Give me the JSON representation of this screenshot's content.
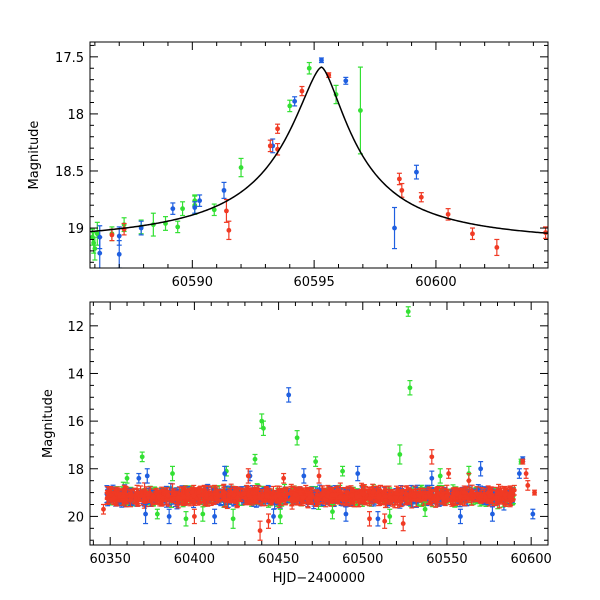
{
  "colors": {
    "green": "#33e033",
    "blue": "#1f5fe0",
    "red": "#f03a24",
    "fit": "#000000",
    "axes": "#000000"
  },
  "chart_data": [
    {
      "type": "scatter",
      "title": "",
      "xlabel": "",
      "ylabel": "Magnitude",
      "xlim": [
        60585.8,
        60604.6
      ],
      "ylim": [
        19.35,
        17.37
      ],
      "inverted_y": true,
      "x_major_ticks": [
        60590,
        60595,
        60600
      ],
      "x_tick_labels": [
        "60590",
        "60595",
        "60600"
      ],
      "y_major_ticks": [
        17.5,
        18,
        18.5,
        19
      ],
      "y_tick_labels": [
        "17.5",
        "18",
        "18.5",
        "19"
      ],
      "grid": false,
      "legend": "none",
      "fit_curve": {
        "type": "microlensing",
        "peak_x": 60595.3,
        "peak_mag": 17.59,
        "baseline_mag": 19.15
      },
      "series": [
        {
          "color": "green",
          "points": [
            [
              60585.9,
              19.08,
              0.07
            ],
            [
              60585.95,
              19.13,
              0.09
            ],
            [
              60586.0,
              19.18,
              0.1
            ],
            [
              60586.1,
              19.05,
              0.1
            ],
            [
              60586.7,
              19.05,
              0.06
            ],
            [
              60587.2,
              18.97,
              0.06
            ],
            [
              60587.9,
              18.99,
              0.06
            ],
            [
              60588.4,
              18.97,
              0.1
            ],
            [
              60588.9,
              18.96,
              0.06
            ],
            [
              60589.4,
              18.99,
              0.05
            ],
            [
              60589.6,
              18.83,
              0.06
            ],
            [
              60590.1,
              18.8,
              0.08
            ],
            [
              60590.1,
              18.76,
              0.05
            ],
            [
              60590.9,
              18.84,
              0.05
            ],
            [
              60592.0,
              18.47,
              0.08
            ],
            [
              60594.0,
              17.93,
              0.05
            ],
            [
              60594.8,
              17.6,
              0.05
            ],
            [
              60595.9,
              17.83,
              0.08
            ],
            [
              60596.9,
              17.97,
              0.38
            ]
          ]
        },
        {
          "color": "blue",
          "points": [
            [
              60586.2,
              19.22,
              0.14
            ],
            [
              60586.2,
              19.08,
              0.1
            ],
            [
              60587.0,
              19.23,
              0.12
            ],
            [
              60587.0,
              19.07,
              0.08
            ],
            [
              60587.9,
              19.0,
              0.06
            ],
            [
              60589.2,
              18.83,
              0.05
            ],
            [
              60590.1,
              18.82,
              0.05
            ],
            [
              60590.3,
              18.76,
              0.05
            ],
            [
              60591.3,
              18.67,
              0.07
            ],
            [
              60593.3,
              18.28,
              0.06
            ],
            [
              60594.2,
              17.89,
              0.04
            ],
            [
              60595.3,
              17.53,
              0.02
            ],
            [
              60596.3,
              17.71,
              0.03
            ],
            [
              60598.3,
              19.0,
              0.18
            ],
            [
              60599.2,
              18.51,
              0.06
            ]
          ]
        },
        {
          "color": "red",
          "points": [
            [
              60586.7,
              19.06,
              0.05
            ],
            [
              60587.2,
              19.01,
              0.05
            ],
            [
              60591.4,
              18.85,
              0.1
            ],
            [
              60591.5,
              19.02,
              0.08
            ],
            [
              60593.2,
              18.28,
              0.05
            ],
            [
              60593.5,
              18.13,
              0.04
            ],
            [
              60593.5,
              18.31,
              0.05
            ],
            [
              60594.5,
              17.8,
              0.04
            ],
            [
              60595.6,
              17.66,
              0.02
            ],
            [
              60598.5,
              18.57,
              0.05
            ],
            [
              60598.6,
              18.67,
              0.06
            ],
            [
              60599.4,
              18.73,
              0.04
            ],
            [
              60600.5,
              18.88,
              0.05
            ],
            [
              60601.5,
              19.05,
              0.05
            ],
            [
              60602.5,
              19.17,
              0.07
            ],
            [
              60604.5,
              19.04,
              0.05
            ]
          ]
        }
      ]
    },
    {
      "type": "scatter",
      "title": "",
      "xlabel": "HJD−2400000",
      "ylabel": "Magnitude",
      "xlim": [
        60338,
        60610
      ],
      "ylim": [
        21.2,
        11.0
      ],
      "inverted_y": true,
      "x_major_ticks": [
        60350,
        60400,
        60450,
        60500,
        60550,
        60600
      ],
      "x_tick_labels": [
        "60350",
        "60400",
        "60450",
        "60500",
        "60550",
        "60600"
      ],
      "y_major_ticks": [
        12,
        14,
        16,
        18,
        20
      ],
      "y_tick_labels": [
        "12",
        "14",
        "16",
        "18",
        "20"
      ],
      "grid": false,
      "legend": "none",
      "baseline_mag": 19.15,
      "series": [
        {
          "color": "green",
          "points": [
            [
              60527,
              11.4,
              0.2
            ],
            [
              60528,
              14.6,
              0.3
            ],
            [
              60440,
              16.0,
              0.3
            ],
            [
              60441,
              16.3,
              0.3
            ],
            [
              60461,
              16.7,
              0.3
            ],
            [
              60522,
              17.4,
              0.4
            ],
            [
              60369,
              17.5,
              0.2
            ],
            [
              60387,
              18.2,
              0.3
            ],
            [
              60419,
              18.1,
              0.2
            ],
            [
              60436,
              17.6,
              0.2
            ],
            [
              60472,
              17.7,
              0.2
            ],
            [
              60488,
              18.1,
              0.2
            ],
            [
              60546,
              18.3,
              0.3
            ],
            [
              60360,
              18.4,
              0.2
            ],
            [
              60405,
              19.9,
              0.3
            ],
            [
              60423,
              20.1,
              0.4
            ],
            [
              60451,
              20.0,
              0.3
            ],
            [
              60482,
              19.8,
              0.3
            ],
            [
              60516,
              20.0,
              0.3
            ],
            [
              60537,
              19.7,
              0.3
            ],
            [
              60563,
              18.2,
              0.3
            ],
            [
              60378,
              19.9,
              0.2
            ],
            [
              60395,
              20.1,
              0.3
            ],
            [
              60594,
              17.7,
              0.1
            ]
          ]
        },
        {
          "color": "blue",
          "points": [
            [
              60456,
              14.9,
              0.3
            ],
            [
              60371,
              19.9,
              0.4
            ],
            [
              60372,
              18.3,
              0.3
            ],
            [
              60385,
              20.0,
              0.3
            ],
            [
              60418,
              18.2,
              0.3
            ],
            [
              60433,
              18.3,
              0.2
            ],
            [
              60447,
              20.0,
              0.3
            ],
            [
              60465,
              18.3,
              0.3
            ],
            [
              60497,
              18.2,
              0.3
            ],
            [
              60509,
              20.1,
              0.3
            ],
            [
              60541,
              18.4,
              0.3
            ],
            [
              60570,
              18.0,
              0.3
            ],
            [
              60593,
              18.2,
              0.2
            ],
            [
              60595,
              17.6,
              0.1
            ],
            [
              60601,
              19.9,
              0.2
            ],
            [
              60367,
              18.4,
              0.2
            ],
            [
              60412,
              20.0,
              0.3
            ],
            [
              60490,
              19.9,
              0.3
            ],
            [
              60558,
              20.0,
              0.3
            ],
            [
              60577,
              19.9,
              0.3
            ]
          ]
        },
        {
          "color": "red",
          "points": [
            [
              60541,
              17.5,
              0.3
            ],
            [
              60432,
              18.3,
              0.3
            ],
            [
              60453,
              18.4,
              0.2
            ],
            [
              60474,
              18.3,
              0.3
            ],
            [
              60504,
              20.1,
              0.3
            ],
            [
              60513,
              20.2,
              0.3
            ],
            [
              60439,
              20.6,
              0.4
            ],
            [
              60444,
              20.2,
              0.3
            ],
            [
              60346,
              19.7,
              0.2
            ],
            [
              60595,
              17.7,
              0.1
            ],
            [
              60597,
              18.2,
              0.2
            ],
            [
              60590,
              18.9,
              0.2
            ],
            [
              60598,
              18.7,
              0.2
            ],
            [
              60602,
              19.0,
              0.1
            ],
            [
              60551,
              18.2,
              0.2
            ],
            [
              60563,
              18.5,
              0.3
            ],
            [
              60400,
              20.0,
              0.3
            ],
            [
              60524,
              20.3,
              0.3
            ]
          ]
        }
      ]
    }
  ]
}
